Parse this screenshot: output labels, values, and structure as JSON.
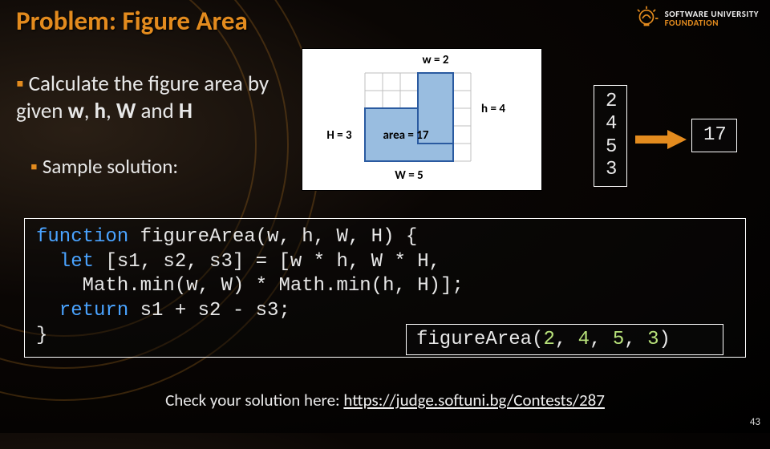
{
  "colors": {
    "accent": "#E38B1E",
    "title": "#E38B1E",
    "background": "#000000",
    "text": "#e8e8e8",
    "box_border": "#ffffff",
    "code_keyword": "#4aa3ff",
    "code_type": "#6bd3d6",
    "code_number": "#b8e27a",
    "arrow_fill": "#E38B1E",
    "figure_fill": "#99bde0",
    "figure_grid": "#bfbfbf",
    "figure_outline": "#2a5aa0"
  },
  "title": "Problem: Figure Area",
  "logo": {
    "line1": "SOFTWARE UNIVERSITY",
    "line2": "FOUNDATION"
  },
  "bullet_text_1": "Calculate the figure area by given ",
  "bullet_vars": {
    "w": "w",
    "h": "h",
    "W": "W",
    "H": "H",
    "and": " and "
  },
  "bullet_sub": "Sample solution:",
  "figure": {
    "label_top": "w = 2",
    "label_left": "H = 3",
    "label_right": "h = 4",
    "label_bottom": "W = 5",
    "label_center": "area = 17",
    "grid": {
      "cols": 6,
      "rows": 5,
      "cell": 22
    },
    "shape": {
      "w": 2,
      "h": 4,
      "W": 5,
      "H": 3
    }
  },
  "io": {
    "input_lines": [
      "2",
      "4",
      "5",
      "3"
    ],
    "output": "17"
  },
  "code": {
    "l1a": "function",
    "l1b": " figureArea(w, h, W, H) {",
    "l2a": "  let",
    "l2b": " [s1, s2, s3] = [w * h, W * H,",
    "l3": "    Math.min(w, W) * Math.min(h, H)];",
    "l4a": "  return",
    "l4b": " s1 + s2 - s3;",
    "l5": "}"
  },
  "call": {
    "prefix": "figureArea(",
    "args": [
      "2",
      "4",
      "5",
      "3"
    ],
    "sep": ", ",
    "suffix": ")"
  },
  "check": {
    "prefix": "Check your solution here: ",
    "url_text": "https://judge.softuni.bg/Contests/287"
  },
  "slide_number": "43"
}
